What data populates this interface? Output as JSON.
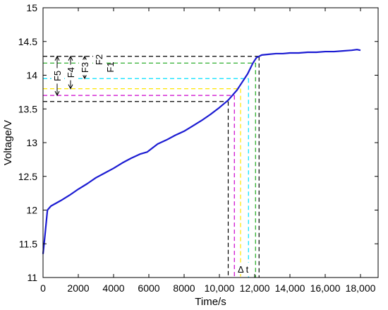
{
  "chart_data": {
    "type": "line",
    "xlabel": "Time/s",
    "ylabel": "Voltage/V",
    "xlim": [
      0,
      19000
    ],
    "ylim": [
      11,
      15
    ],
    "x_ticks": [
      0,
      2000,
      4000,
      6000,
      8000,
      10000,
      12000,
      14000,
      16000,
      18000
    ],
    "x_tick_labels": [
      "0",
      "2000",
      "4000",
      "6000",
      "8000",
      "10,000",
      "12,000",
      "14,000",
      "16,000",
      "18,000"
    ],
    "y_ticks": [
      11,
      11.5,
      12,
      12.5,
      13,
      13.5,
      14,
      14.5,
      15
    ],
    "y_tick_labels": [
      "11",
      "11.5",
      "12",
      "12.5",
      "13",
      "13.5",
      "14",
      "14.5",
      "15"
    ],
    "grid": false,
    "series": [
      {
        "color": "#1c1cd2",
        "x": [
          0,
          100,
          250,
          450,
          1000,
          1500,
          2000,
          2500,
          3000,
          3500,
          4000,
          4500,
          5000,
          5500,
          5900,
          6200,
          6500,
          7000,
          7500,
          8000,
          8500,
          9000,
          9500,
          10000,
          10500,
          11000,
          11300,
          11600,
          11900,
          12100,
          12400,
          12800,
          13200,
          13600,
          14000,
          14500,
          15000,
          15500,
          16000,
          16500,
          17000,
          17500,
          17800,
          18000
        ],
        "y": [
          11.35,
          11.6,
          12.0,
          12.06,
          12.14,
          12.22,
          12.31,
          12.39,
          12.48,
          12.55,
          12.62,
          12.7,
          12.77,
          12.83,
          12.86,
          12.92,
          12.98,
          13.04,
          13.11,
          13.17,
          13.25,
          13.33,
          13.42,
          13.52,
          13.63,
          13.78,
          13.9,
          14.02,
          14.18,
          14.26,
          14.3,
          14.31,
          14.32,
          14.32,
          14.33,
          14.33,
          14.34,
          14.34,
          14.35,
          14.35,
          14.36,
          14.37,
          14.38,
          14.37
        ]
      }
    ],
    "reference_lines": [
      {
        "label": "F1",
        "color": "#000000",
        "voltage": 14.28,
        "time": 12250
      },
      {
        "label": "F2",
        "color": "#1aa61a",
        "voltage": 14.18,
        "time": 12050
      },
      {
        "label": "F3",
        "color": "#00e0ff",
        "voltage": 13.95,
        "time": 11650
      },
      {
        "label": "F4",
        "color": "#ffe600",
        "voltage": 13.8,
        "time": 11200
      },
      {
        "label": "F5",
        "color": "#cc00cc",
        "voltage": 13.7,
        "time": 10850
      },
      {
        "label": "",
        "color": "#000000",
        "voltage": 13.61,
        "time": 10500
      }
    ],
    "annotation": "Δ t"
  }
}
